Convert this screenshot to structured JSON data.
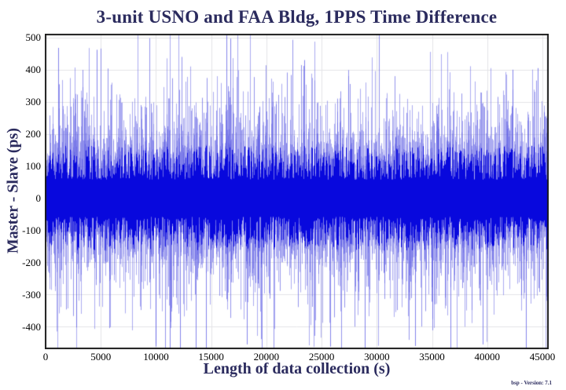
{
  "figure": {
    "footer_text": "bsp - Version: 7.1"
  },
  "colors": {
    "background": "#ffffff",
    "title": "#2b2b5e",
    "axis_label": "#2b2b5e",
    "tick_label": "#000000",
    "grid": "#e4e4e8",
    "frame": "#1b1b1b",
    "data": "#0808dd",
    "data_light": "#5a5ae4"
  },
  "chart_data": {
    "type": "line",
    "title": "3-unit USNO and FAA Bldg, 1PPS Time Difference",
    "xlabel": "Length of data collection (s)",
    "ylabel": "Master - Slave (ps)",
    "xlim": [
      0,
      45500
    ],
    "ylim": [
      -470,
      512
    ],
    "x_ticks": [
      0,
      5000,
      10000,
      15000,
      20000,
      25000,
      30000,
      35000,
      40000,
      45000
    ],
    "y_ticks": [
      500,
      400,
      300,
      200,
      100,
      0,
      -100,
      -200,
      -300,
      -400
    ],
    "grid": true,
    "legend": "none",
    "series": [
      {
        "name": "1PPS time difference (Master - Slave)",
        "color": "#0808dd",
        "sample_interval_s": 1,
        "description": "zero-mean white-noise scatter: solid core band roughly +/-60 to +/-160 ps, frequent thin excursions to +/-350 ps, rare spikes reaching +512 ps (clipped at top frame) and -470 ps (clipped at bottom frame)",
        "synthesis": {
          "seed": 1337,
          "columns": 637,
          "core_min_ps": 58,
          "core_var_ps": 105,
          "spike_tail_ps": 62,
          "spikes_per_side": 3,
          "big_spike_prob": 0.08,
          "big_spike_base_ps": 255,
          "big_spike_tail_ps": 85
        },
        "feature_spikes": [
          {
            "x": 1150,
            "v": 468
          },
          {
            "x": 4600,
            "v": 462
          },
          {
            "x": 16350,
            "v": 512
          },
          {
            "x": 16750,
            "v": 497
          },
          {
            "x": 23400,
            "v": 430
          },
          {
            "x": 42300,
            "v": 400
          },
          {
            "x": 44600,
            "v": 405
          },
          {
            "x": 9950,
            "v": -462
          },
          {
            "x": 11230,
            "v": -470
          },
          {
            "x": 12150,
            "v": -470
          },
          {
            "x": 13570,
            "v": -468
          },
          {
            "x": 14560,
            "v": -470
          },
          {
            "x": 18200,
            "v": -455
          },
          {
            "x": 25800,
            "v": -462
          },
          {
            "x": 28900,
            "v": -470
          },
          {
            "x": 33500,
            "v": -460
          },
          {
            "x": 36700,
            "v": -470
          },
          {
            "x": 39600,
            "v": -455
          },
          {
            "x": 43500,
            "v": -470
          }
        ]
      }
    ]
  }
}
